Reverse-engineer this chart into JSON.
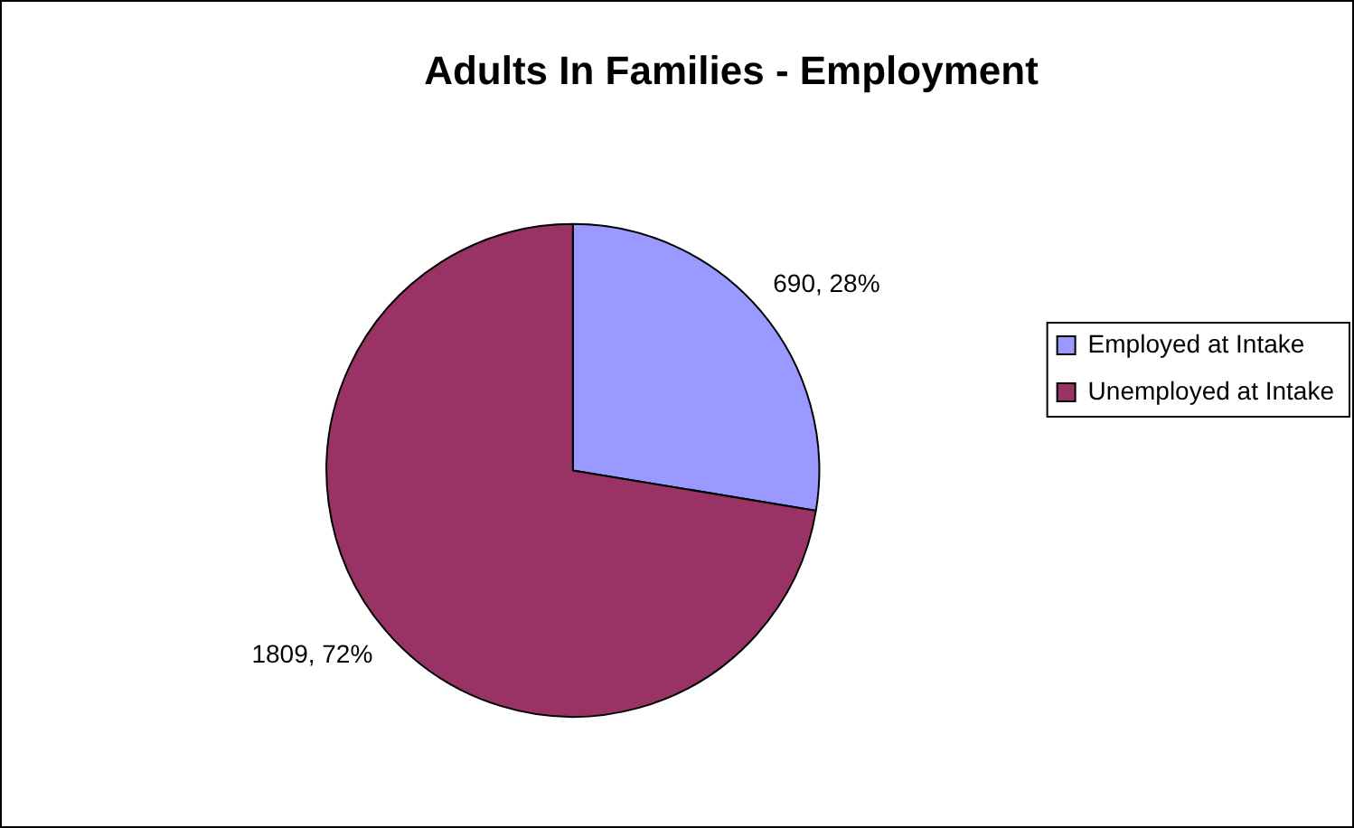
{
  "chart_data": {
    "type": "pie",
    "title": "Adults In Families - Employment",
    "categories": [
      "Employed at Intake",
      "Unemployed at Intake"
    ],
    "values": [
      690,
      1809
    ],
    "colors": [
      "#9999ff",
      "#993366"
    ],
    "value_labels": [
      "690, 28%",
      "1809, 72%"
    ],
    "legend": "right"
  }
}
